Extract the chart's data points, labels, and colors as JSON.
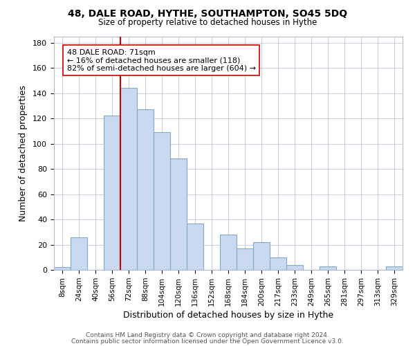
{
  "title": "48, DALE ROAD, HYTHE, SOUTHAMPTON, SO45 5DQ",
  "subtitle": "Size of property relative to detached houses in Hythe",
  "xlabel": "Distribution of detached houses by size in Hythe",
  "ylabel": "Number of detached properties",
  "bin_labels": [
    "8sqm",
    "24sqm",
    "40sqm",
    "56sqm",
    "72sqm",
    "88sqm",
    "104sqm",
    "120sqm",
    "136sqm",
    "152sqm",
    "168sqm",
    "184sqm",
    "200sqm",
    "217sqm",
    "233sqm",
    "249sqm",
    "265sqm",
    "281sqm",
    "297sqm",
    "313sqm",
    "329sqm"
  ],
  "bar_heights": [
    2,
    26,
    0,
    122,
    144,
    127,
    109,
    88,
    37,
    0,
    28,
    17,
    22,
    10,
    4,
    0,
    3,
    0,
    0,
    0,
    3
  ],
  "bar_color": "#c8d9f0",
  "bar_edge_color": "#7fa8cc",
  "property_line_index": 4,
  "property_line_color": "#cc0000",
  "annotation_text": "48 DALE ROAD: 71sqm\n← 16% of detached houses are smaller (118)\n82% of semi-detached houses are larger (604) →",
  "annotation_box_color": "#ffffff",
  "annotation_box_edge": "#cc0000",
  "ylim": [
    0,
    185
  ],
  "yticks": [
    0,
    20,
    40,
    60,
    80,
    100,
    120,
    140,
    160,
    180
  ],
  "footer1": "Contains HM Land Registry data © Crown copyright and database right 2024.",
  "footer2": "Contains public sector information licensed under the Open Government Licence v3.0.",
  "background_color": "#ffffff",
  "grid_color": "#c8d0dc",
  "spine_color": "#b0b8cc"
}
